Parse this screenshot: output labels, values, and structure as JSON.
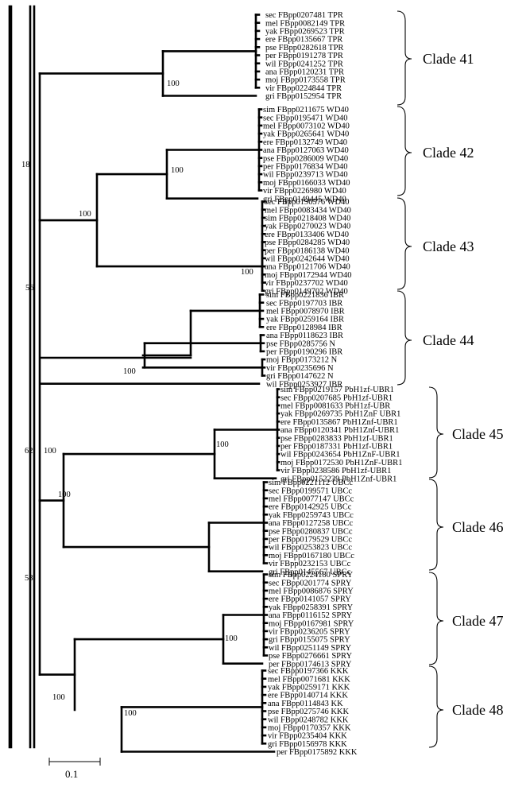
{
  "clades": [
    {
      "name": "Clade 41",
      "taxa": [
        "sec FBpp0207481 TPR",
        "mel FBpp0082149 TPR",
        "yak FBpp0269523 TPR",
        "ere FBpp0135667 TPR",
        "pse FBpp0282618 TPR",
        "per FBpp0191278 TPR",
        "wil FBpp0241252 TPR",
        "ana FBpp0120231 TPR",
        "moj FBpp0173558 TPR",
        "vir FBpp0224844 TPR",
        "gri FBpp0152954 TPR"
      ]
    },
    {
      "name": "Clade 42",
      "taxa": [
        "sim FBpp0211675 WD40",
        "sec FBpp0195471 WD40",
        "mel FBpp0073102 WD40",
        "yak FBpp0265641 WD40",
        "ere FBpp0132749 WD40",
        "ana FBpp0127063 WD40",
        "pse FBpp0286009 WD40",
        "per FBpp0176834 WD40",
        "wil FBpp0239713 WD40",
        "moj FBpp0166033 WD40",
        "vir FBpp0226980 WD40",
        "gri FBpp0149445 WD40"
      ]
    },
    {
      "name": "Clade 43",
      "taxa": [
        "sec FBpp0196576 WD40",
        "mel FBpp0083434 WD40",
        "sim FBpp0218408 WD40",
        "yak FBpp0270023 WD40",
        "ere FBpp0133406 WD40",
        "pse FBpp0284285 WD40",
        "per FBpp0186138 WD40",
        "wil FBpp0242644 WD40",
        "ana FBpp0121706 WD40",
        "moj FBpp0172944 WD40",
        "vir FBpp0237702 WD40",
        "gri FBpp0149702 WD40"
      ]
    },
    {
      "name": "Clade 44",
      "taxa": [
        "sim FBpp0221836 IBR",
        "sec FBpp0197703 IBR",
        "mel FBpp0078970 IBR",
        "yak FBpp0259164 IBR",
        "ere FBpp0128984 IBR",
        "ana FBpp0118623 IBR",
        "pse FBpp0285756 N",
        "per FBpp0190296 IBR",
        "moj FBpp0173212 N",
        "vir FBpp0235696 N",
        "gri FBpp0147622 N",
        "wil FBpp0253927 IBR"
      ]
    },
    {
      "name": "Clade 45",
      "taxa": [
        "sim FBpp0219157 PbH1zf-UBR1",
        "sec FBpp0207685 PbH1zf-UBR1",
        "mel FBpp0081633 PbH1zf-UBR",
        "yak FBpp0269735 PbH1ZnF UBR1",
        "ere FBpp0135867 PbH1Znf-UBR1",
        "ana FBpp0120341 PbH1Znf-UBR1",
        "pse FBpp0283833 PbH1zf-UBR1",
        "per FBpp0187331 PbH1zf-UBR1",
        "wil FBpp0243654 PbH1ZnF-UBR1",
        "moj FBpp0172530 PbH1ZnF-UBR1",
        "vir FBpp0238586 PbH1zf-UBR1",
        "gri FBpp0152239 PbH1Znf-UBR1"
      ]
    },
    {
      "name": "Clade 46",
      "taxa": [
        "sim FBpp0221112 UBCc",
        "sec FBpp0199571 UBCc",
        "mel FBpp0077147 UBCc",
        "ere FBpp0142925 UBCc",
        "yak FBpp0259743 UBCc",
        "ana FBpp0127258 UBCc",
        "pse FBpp0280837 UBCc",
        "per FBpp0179529 UBCc",
        "wil FBpp0253823 UBCc",
        "moj FBpp0167180 UBCc",
        "vir FBpp0232153 UBCc",
        "gri FBpp0145567 UBCc"
      ]
    },
    {
      "name": "Clade 47",
      "taxa": [
        "sim FBpp0224180 SPRY",
        "sec FBpp0201774 SPRY",
        "mel FBpp0086876 SPRY",
        "ere FBpp0141057 SPRY",
        "yak FBpp0258391 SPRY",
        "ana FBpp0116152 SPRY",
        "moj FBpp0167981 SPRY",
        "vir FBpp0236205 SPRY",
        "gri FBpp0155075 SPRY",
        "wil FBpp0251149 SPRY",
        "pse FBpp0276661 SPRY",
        "per FBpp0174613 SPRY"
      ]
    },
    {
      "name": "Clade 48",
      "taxa": [
        "sec FBpp0197366 KKK",
        "mel FBpp0071681 KKK",
        "yak FBpp0259171 KKK",
        "ere FBpp0140714 KKK",
        "ana FBpp0114843 KK",
        "pse FBpp0275746 KKK",
        "wil FBpp0248782 KKK",
        "moj FBpp0170357 KKK",
        "vir FBpp0235404 KKK",
        "gri FBpp0156978 KKK",
        "per FBpp0175892 KKK"
      ]
    }
  ],
  "bootstrap_values": {
    "clade41": "100",
    "clade42": "100",
    "clade42_43": "100",
    "clade43": "100",
    "clade44": "100",
    "clade45": "100",
    "clade46": "100",
    "clade45_46": "100",
    "clade47": "100",
    "clade48": "100",
    "clade47_48": "100",
    "root_a": "18",
    "root_b": "56",
    "root_c": "62",
    "root_d": "58"
  },
  "scale_bar": {
    "label": "0.1"
  }
}
